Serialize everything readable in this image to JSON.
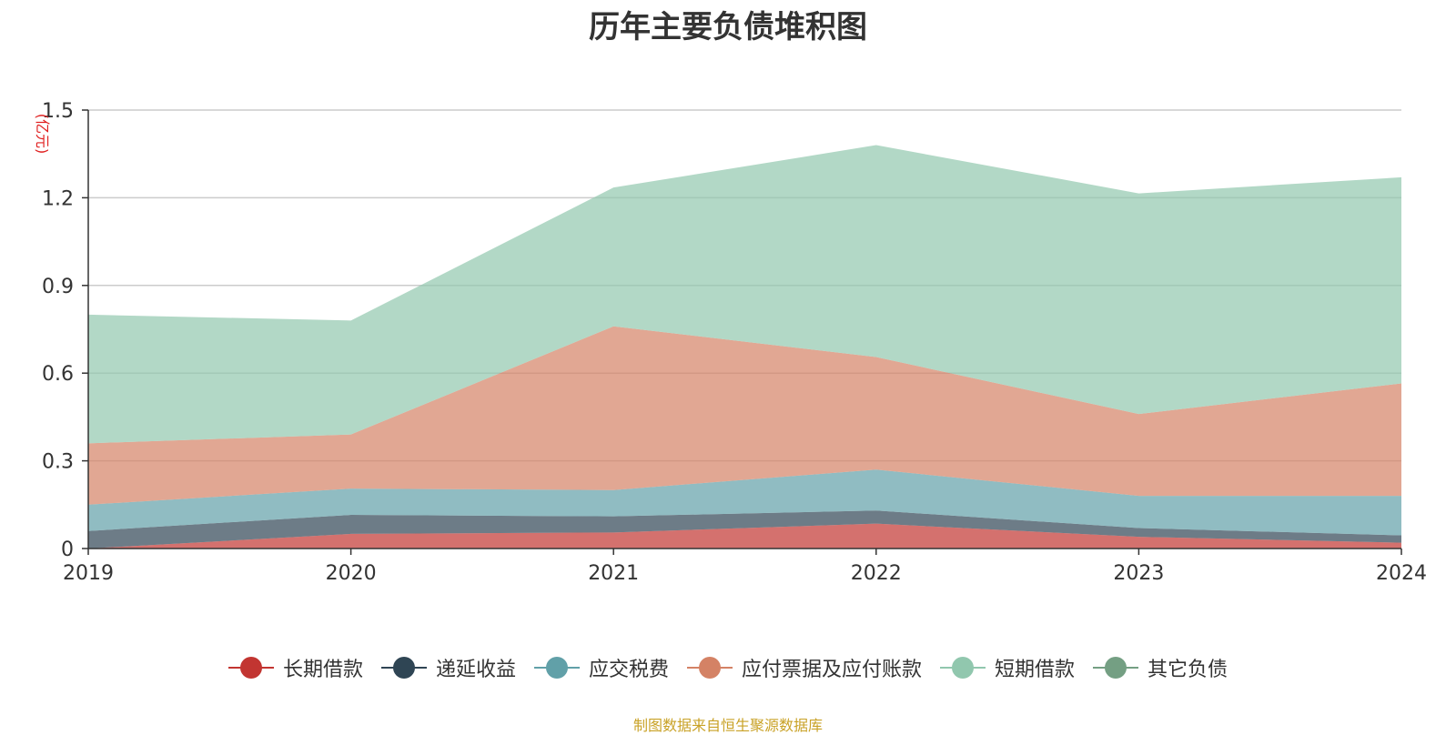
{
  "chart_data": {
    "type": "area",
    "stacked": true,
    "title": "历年主要负债堆积图",
    "ylabel": "(亿元)",
    "x": [
      "2019",
      "2020",
      "2021",
      "2022",
      "2023",
      "2024"
    ],
    "ylim": [
      0,
      1.5
    ],
    "yticks": [
      "0",
      "0.3",
      "0.6",
      "0.9",
      "1.2",
      "1.5"
    ],
    "grid": true,
    "legend_position": "bottom",
    "series": [
      {
        "name": "长期借款",
        "color": "#c23531",
        "values": [
          0.0,
          0.05,
          0.055,
          0.085,
          0.04,
          0.02
        ]
      },
      {
        "name": "递延收益",
        "color": "#2f4554",
        "values": [
          0.06,
          0.065,
          0.055,
          0.045,
          0.03,
          0.025
        ]
      },
      {
        "name": "应交税费",
        "color": "#61a0a8",
        "values": [
          0.09,
          0.09,
          0.09,
          0.14,
          0.11,
          0.135
        ]
      },
      {
        "name": "应付票据及应付账款",
        "color": "#d48265",
        "values": [
          0.21,
          0.185,
          0.56,
          0.385,
          0.28,
          0.385
        ]
      },
      {
        "name": "短期借款",
        "color": "#91c7ae",
        "values": [
          0.44,
          0.39,
          0.475,
          0.725,
          0.755,
          0.705
        ]
      },
      {
        "name": "其它负债",
        "color": "#749f83",
        "values": [
          0.0,
          0.0,
          0.0,
          0.0,
          0.0,
          0.0
        ]
      }
    ]
  },
  "source_note": "制图数据来自恒生聚源数据库"
}
